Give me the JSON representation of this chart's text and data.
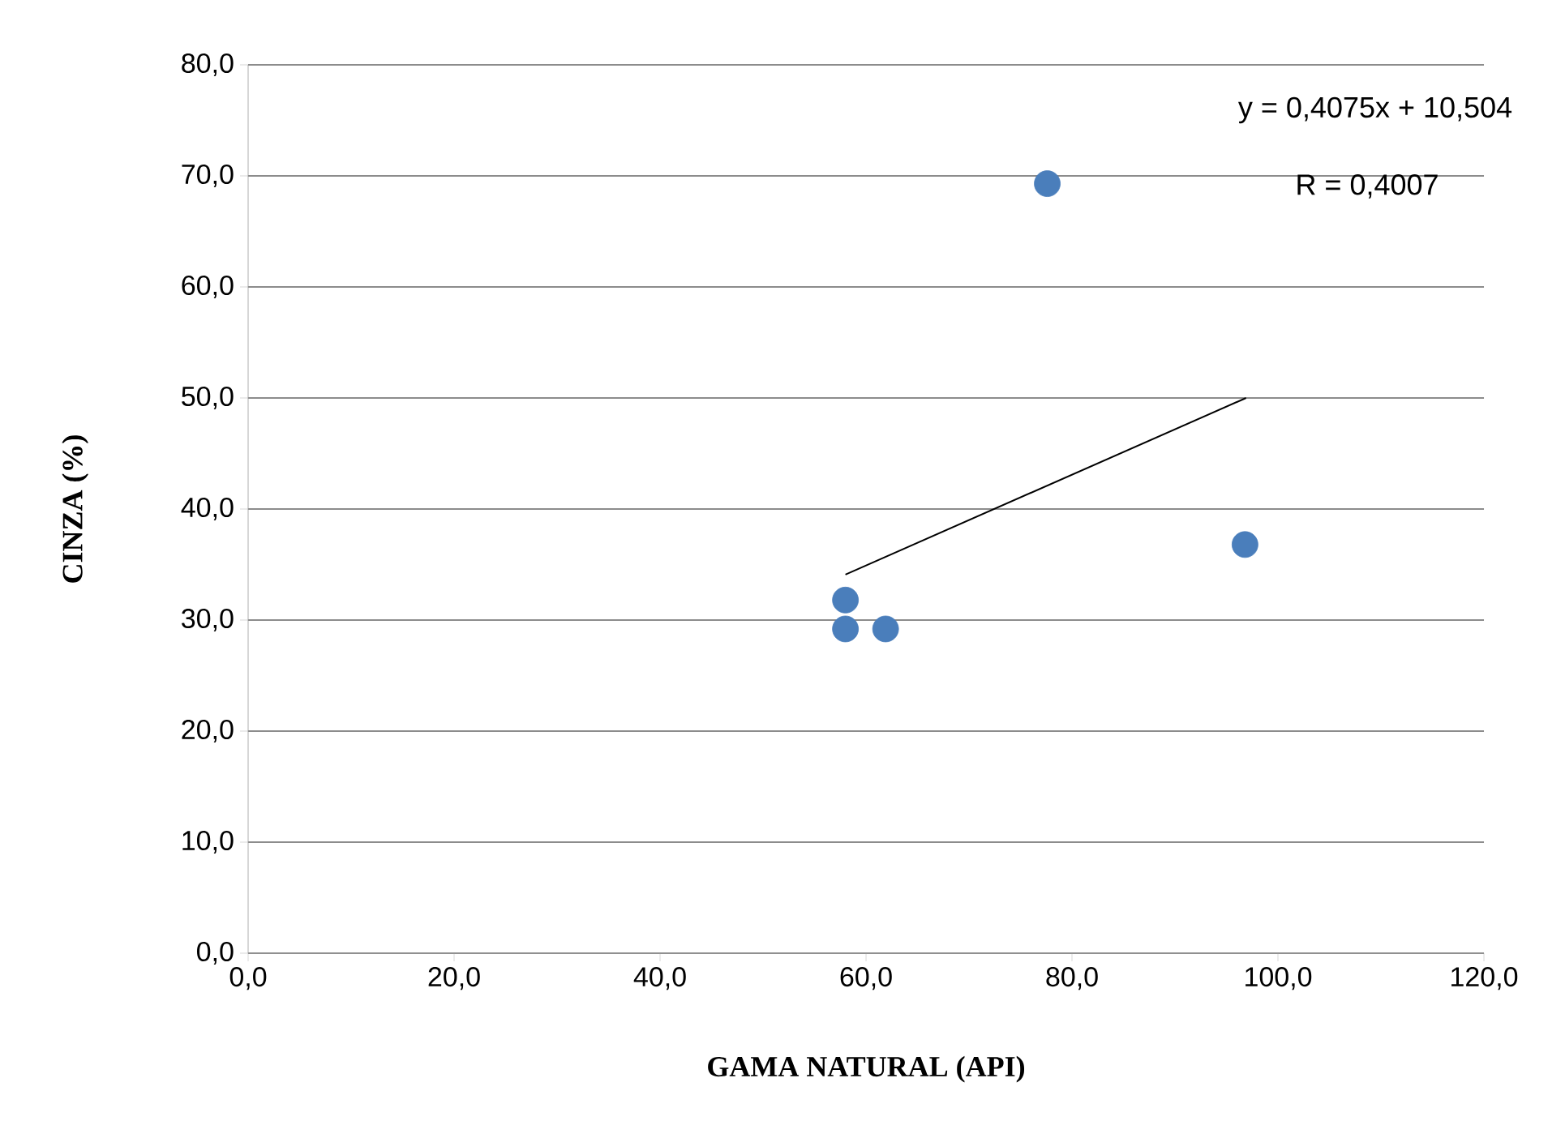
{
  "chart_data": {
    "type": "scatter",
    "xlabel": "GAMA NATURAL (API)",
    "ylabel": "CINZA (%)",
    "series": [
      {
        "color": "#4a7ebb",
        "marker": "circle",
        "x": [
          58.0,
          58.0,
          61.9,
          77.6,
          96.8
        ],
        "values": [
          31.8,
          29.2,
          29.2,
          69.3,
          36.8
        ]
      },
      {
        "type": "line",
        "color": "#000000",
        "marker": "none",
        "line_style": "solid",
        "x": [
          58.0,
          96.9
        ],
        "values": [
          34.1,
          50.0
        ]
      }
    ],
    "xlim": [
      0,
      120
    ],
    "ylim": [
      0,
      80
    ],
    "xticks": [
      {
        "value": 0,
        "label": "0,0"
      },
      {
        "value": 20,
        "label": "20,0"
      },
      {
        "value": 40,
        "label": "40,0"
      },
      {
        "value": 60,
        "label": "60,0"
      },
      {
        "value": 80,
        "label": "80,0"
      },
      {
        "value": 100,
        "label": "100,0"
      },
      {
        "value": 120,
        "label": "120,0"
      }
    ],
    "yticks": [
      {
        "value": 0,
        "label": "0,0"
      },
      {
        "value": 10,
        "label": "10,0"
      },
      {
        "value": 20,
        "label": "20,0"
      },
      {
        "value": 30,
        "label": "30,0"
      },
      {
        "value": 40,
        "label": "40,0"
      },
      {
        "value": 50,
        "label": "50,0"
      },
      {
        "value": 60,
        "label": "60,0"
      },
      {
        "value": 70,
        "label": "70,0"
      },
      {
        "value": 80,
        "label": "80,0"
      }
    ],
    "grid": "y",
    "annotations": [
      "y = 0,4075x + 10,504",
      "R = 0,4007"
    ]
  }
}
